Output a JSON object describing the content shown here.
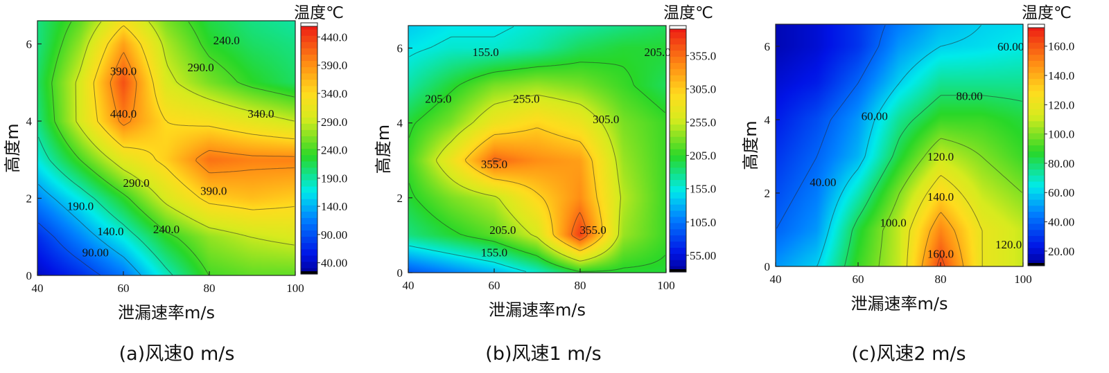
{
  "chart_data": [
    {
      "type": "heatmap",
      "caption": "(a)风速0 m/s",
      "xlabel": "泄漏速率m/s",
      "ylabel": "高度m",
      "colorbar_title": "温度℃",
      "xlim": [
        40,
        100
      ],
      "ylim": [
        0,
        6.6
      ],
      "xticks": [
        "40",
        "60",
        "80",
        "100"
      ],
      "yticks": [
        "0",
        "2",
        "4",
        "6"
      ],
      "vmin": 20,
      "vmax": 465,
      "colorbar_ticks": [
        "40.00",
        "90.00",
        "140.0",
        "190.0",
        "240.0",
        "290.0",
        "340.0",
        "390.0",
        "440.0"
      ],
      "colorbar_tick_values": [
        40,
        90,
        140,
        190,
        240,
        290,
        340,
        390,
        440
      ],
      "contour_levels": [
        90,
        140,
        190,
        240,
        290,
        340,
        390,
        440
      ],
      "contour_labels": [
        {
          "text": "240.0",
          "x": 84,
          "y": 6.1
        },
        {
          "text": "390.0",
          "x": 60,
          "y": 5.3
        },
        {
          "text": "290.0",
          "x": 78,
          "y": 5.4
        },
        {
          "text": "440.0",
          "x": 60,
          "y": 4.2
        },
        {
          "text": "340.0",
          "x": 92,
          "y": 4.2
        },
        {
          "text": "290.0",
          "x": 63,
          "y": 2.4
        },
        {
          "text": "390.0",
          "x": 81,
          "y": 2.2
        },
        {
          "text": "190.0",
          "x": 50,
          "y": 1.8
        },
        {
          "text": "140.0",
          "x": 57,
          "y": 1.15
        },
        {
          "text": "240.0",
          "x": 70,
          "y": 1.2
        },
        {
          "text": "90.00",
          "x": 53.5,
          "y": 0.6
        }
      ],
      "x": [
        40,
        50,
        60,
        70,
        80,
        90,
        100
      ],
      "y": [
        0,
        1,
        2,
        3,
        4,
        5,
        6,
        6.6
      ],
      "z": [
        [
          40,
          70,
          110,
          180,
          240,
          250,
          250
        ],
        [
          70,
          120,
          170,
          230,
          270,
          290,
          300
        ],
        [
          120,
          170,
          230,
          300,
          350,
          360,
          350
        ],
        [
          170,
          240,
          310,
          350,
          410,
          400,
          400
        ],
        [
          200,
          300,
          400,
          340,
          330,
          310,
          290
        ],
        [
          210,
          300,
          430,
          300,
          260,
          230,
          210
        ],
        [
          200,
          270,
          380,
          280,
          230,
          210,
          200
        ],
        [
          200,
          250,
          330,
          260,
          220,
          200,
          190
        ]
      ]
    },
    {
      "type": "heatmap",
      "caption": "(b)风速1 m/s",
      "xlabel": "泄漏速率m/s",
      "ylabel": "高度m",
      "colorbar_title": "温度℃",
      "xlim": [
        40,
        100
      ],
      "ylim": [
        0,
        6.6
      ],
      "xticks": [
        "40",
        "60",
        "80",
        "100"
      ],
      "yticks": [
        "0",
        "2",
        "4",
        "6"
      ],
      "vmin": 30,
      "vmax": 400,
      "colorbar_ticks": [
        "55.00",
        "105.0",
        "155.0",
        "205.0",
        "255.0",
        "305.0",
        "355.0"
      ],
      "colorbar_tick_values": [
        55,
        105,
        155,
        205,
        255,
        305,
        355
      ],
      "contour_levels": [
        155,
        205,
        255,
        305,
        355
      ],
      "contour_labels": [
        {
          "text": "155.0",
          "x": 58,
          "y": 5.9
        },
        {
          "text": "205.0",
          "x": 98,
          "y": 5.9
        },
        {
          "text": "205.0",
          "x": 47,
          "y": 4.65
        },
        {
          "text": "255.0",
          "x": 67.5,
          "y": 4.65
        },
        {
          "text": "305.0",
          "x": 86,
          "y": 4.1
        },
        {
          "text": "355.0",
          "x": 60,
          "y": 2.9
        },
        {
          "text": "205.0",
          "x": 62,
          "y": 1.15
        },
        {
          "text": "355.0",
          "x": 83,
          "y": 1.15
        },
        {
          "text": "155.0",
          "x": 60,
          "y": 0.55
        }
      ],
      "x": [
        40,
        50,
        60,
        70,
        80,
        90,
        100
      ],
      "y": [
        0,
        1,
        2,
        3,
        4,
        5,
        6,
        6.6
      ],
      "z": [
        [
          90,
          110,
          130,
          160,
          200,
          200,
          200
        ],
        [
          180,
          200,
          220,
          260,
          380,
          240,
          210
        ],
        [
          200,
          230,
          250,
          300,
          340,
          250,
          210
        ],
        [
          210,
          280,
          360,
          340,
          330,
          240,
          210
        ],
        [
          200,
          230,
          280,
          300,
          280,
          230,
          210
        ],
        [
          170,
          200,
          230,
          240,
          230,
          210,
          190
        ],
        [
          150,
          160,
          160,
          170,
          190,
          200,
          200
        ],
        [
          140,
          150,
          150,
          160,
          170,
          180,
          190
        ]
      ]
    },
    {
      "type": "heatmap",
      "caption": "(c)风速2 m/s",
      "xlabel": "泄漏速率m/s",
      "ylabel": "高度m",
      "colorbar_title": "温度℃",
      "xlim": [
        40,
        100
      ],
      "ylim": [
        0,
        6.6
      ],
      "xticks": [
        "40",
        "60",
        "80",
        "100"
      ],
      "yticks": [
        "0",
        "2",
        "4",
        "6"
      ],
      "vmin": 10,
      "vmax": 175,
      "colorbar_ticks": [
        "20.00",
        "40.00",
        "60.00",
        "80.00",
        "100.0",
        "120.0",
        "140.0",
        "160.0"
      ],
      "colorbar_tick_values": [
        20,
        40,
        60,
        80,
        100,
        120,
        140,
        160
      ],
      "contour_levels": [
        40,
        60,
        80,
        100,
        120,
        140,
        160
      ],
      "contour_labels": [
        {
          "text": "60.00",
          "x": 97,
          "y": 6.0
        },
        {
          "text": "80.00",
          "x": 87,
          "y": 4.65
        },
        {
          "text": "60.00",
          "x": 64,
          "y": 4.1
        },
        {
          "text": "120.0",
          "x": 80,
          "y": 3.0
        },
        {
          "text": "40.00",
          "x": 51.5,
          "y": 2.3
        },
        {
          "text": "140.0",
          "x": 80,
          "y": 1.9
        },
        {
          "text": "100.0",
          "x": 68.5,
          "y": 1.2
        },
        {
          "text": "120.0",
          "x": 96.5,
          "y": 0.6
        },
        {
          "text": "160.0",
          "x": 80,
          "y": 0.35
        }
      ],
      "x": [
        40,
        50,
        60,
        70,
        80,
        90,
        100
      ],
      "y": [
        0,
        1,
        2,
        3,
        4,
        5,
        6,
        6.6
      ],
      "z": [
        [
          50,
          60,
          90,
          110,
          165,
          120,
          110
        ],
        [
          40,
          50,
          85,
          110,
          150,
          120,
          110
        ],
        [
          35,
          45,
          70,
          100,
          130,
          110,
          100
        ],
        [
          30,
          40,
          55,
          85,
          110,
          100,
          90
        ],
        [
          25,
          35,
          50,
          75,
          90,
          90,
          85
        ],
        [
          20,
          25,
          40,
          60,
          75,
          75,
          75
        ],
        [
          15,
          20,
          30,
          50,
          60,
          62,
          65
        ],
        [
          15,
          20,
          30,
          45,
          55,
          60,
          62
        ]
      ]
    }
  ]
}
